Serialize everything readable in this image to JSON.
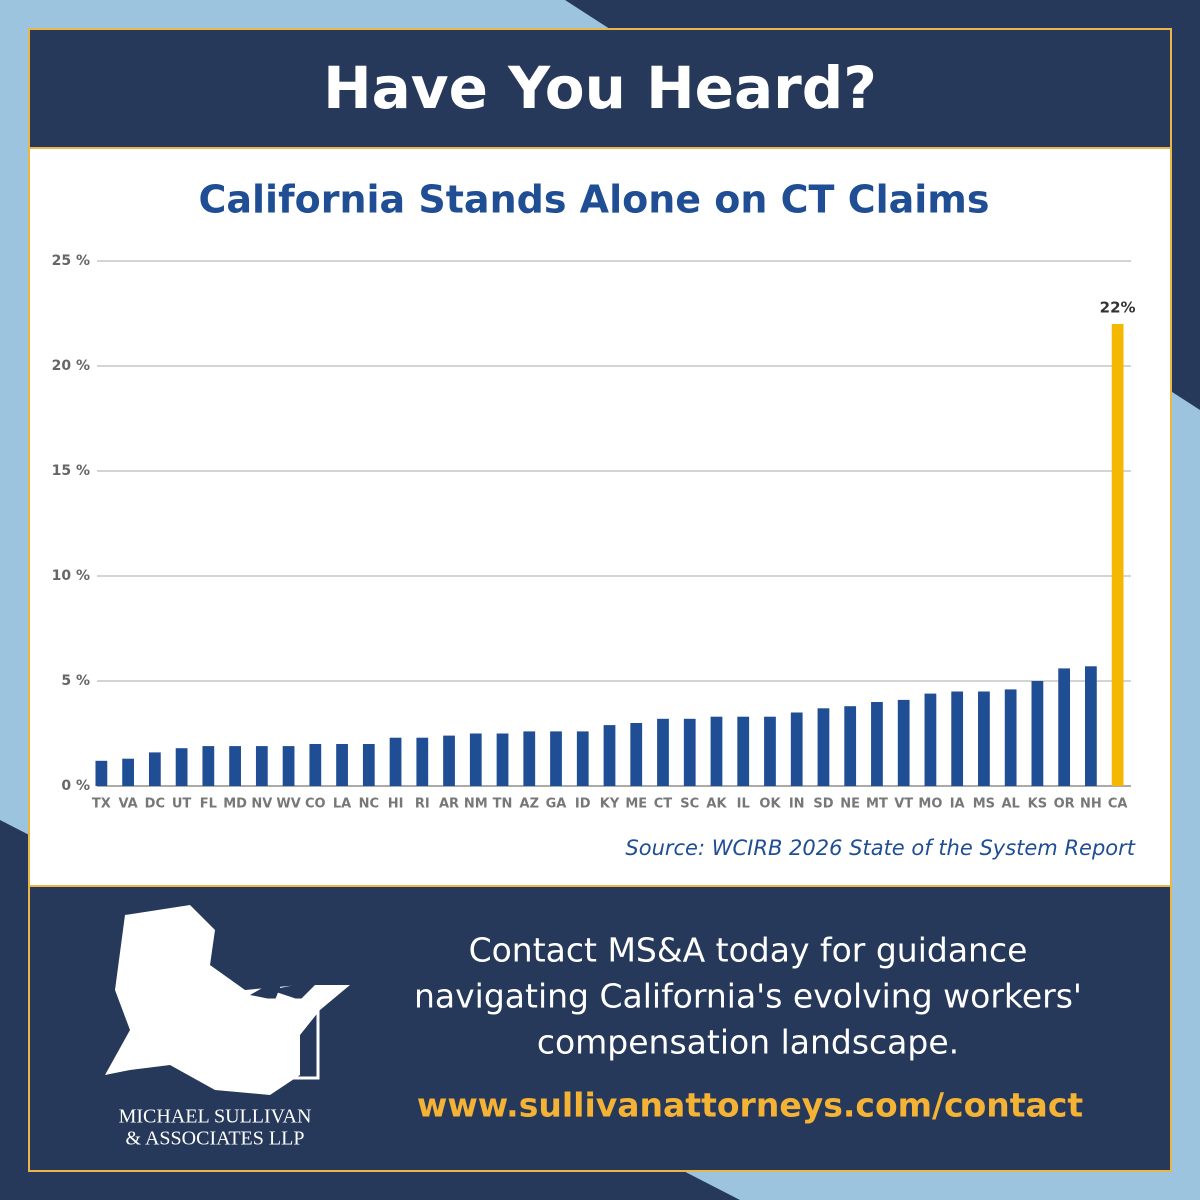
{
  "header": {
    "title": "Have You Heard?"
  },
  "chart_data": {
    "type": "bar",
    "title": "California Stands Alone on CT Claims",
    "source": "Source: WCIRB 2026 State of the System Report",
    "categories": [
      "TX",
      "VA",
      "DC",
      "UT",
      "FL",
      "MD",
      "NV",
      "WV",
      "CO",
      "LA",
      "NC",
      "HI",
      "RI",
      "AR",
      "NM",
      "TN",
      "AZ",
      "GA",
      "ID",
      "KY",
      "ME",
      "CT",
      "SC",
      "AK",
      "IL",
      "OK",
      "IN",
      "SD",
      "NE",
      "MT",
      "VT",
      "MO",
      "IA",
      "MS",
      "AL",
      "KS",
      "OR",
      "NH",
      "CA"
    ],
    "values": [
      1.2,
      1.3,
      1.6,
      1.8,
      1.9,
      1.9,
      1.9,
      1.9,
      2.0,
      2.0,
      2.0,
      2.3,
      2.3,
      2.4,
      2.5,
      2.5,
      2.6,
      2.6,
      2.6,
      2.9,
      3.0,
      3.2,
      3.2,
      3.3,
      3.3,
      3.3,
      3.5,
      3.7,
      3.8,
      4.0,
      4.1,
      4.4,
      4.5,
      4.5,
      4.6,
      5.0,
      5.6,
      5.7,
      22
    ],
    "value_labels": [
      null,
      null,
      null,
      null,
      null,
      null,
      null,
      null,
      null,
      null,
      null,
      null,
      null,
      null,
      null,
      null,
      null,
      null,
      null,
      null,
      null,
      null,
      null,
      null,
      null,
      null,
      null,
      null,
      null,
      null,
      null,
      null,
      null,
      null,
      null,
      null,
      null,
      null,
      "22%"
    ],
    "colors": [
      "#1f4e94",
      "#1f4e94",
      "#1f4e94",
      "#1f4e94",
      "#1f4e94",
      "#1f4e94",
      "#1f4e94",
      "#1f4e94",
      "#1f4e94",
      "#1f4e94",
      "#1f4e94",
      "#1f4e94",
      "#1f4e94",
      "#1f4e94",
      "#1f4e94",
      "#1f4e94",
      "#1f4e94",
      "#1f4e94",
      "#1f4e94",
      "#1f4e94",
      "#1f4e94",
      "#1f4e94",
      "#1f4e94",
      "#1f4e94",
      "#1f4e94",
      "#1f4e94",
      "#1f4e94",
      "#1f4e94",
      "#1f4e94",
      "#1f4e94",
      "#1f4e94",
      "#1f4e94",
      "#1f4e94",
      "#1f4e94",
      "#1f4e94",
      "#1f4e94",
      "#1f4e94",
      "#1f4e94",
      "#f5b800"
    ],
    "ylim": [
      0,
      25
    ],
    "yticks": [
      {
        "value": 0,
        "label": "0 %"
      },
      {
        "value": 5,
        "label": "5 %"
      },
      {
        "value": 10,
        "label": "10 %"
      },
      {
        "value": 15,
        "label": "15 %"
      },
      {
        "value": 20,
        "label": "20 %"
      },
      {
        "value": 25,
        "label": "25 %"
      }
    ],
    "grid": true
  },
  "footer": {
    "message_lines": [
      "Contact MS&A today for guidance",
      "navigating California's evolving workers'",
      "compensation landscape."
    ],
    "url": "www.sullivanattorneys.com/contact",
    "logo_lines": [
      "MICHAEL SULLIVAN",
      "& ASSOCIATES LLP"
    ]
  }
}
